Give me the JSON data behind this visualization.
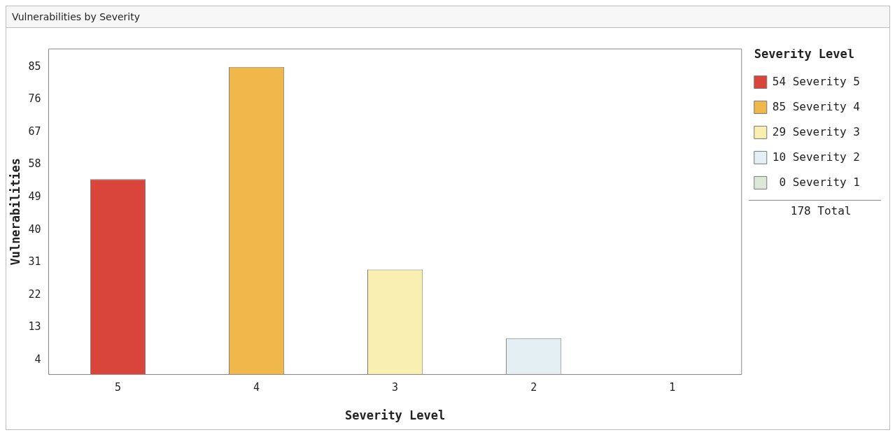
{
  "chart_data": {
    "type": "bar",
    "title": "Vulnerabilities by Severity",
    "xlabel": "Severity Level",
    "ylabel": "Vulnerabilities",
    "legend_title": "Severity Level",
    "categories": [
      "5",
      "4",
      "3",
      "2",
      "1"
    ],
    "stacked": true,
    "series": [
      {
        "name": "54 Severity 5",
        "color": "#d9443b",
        "values": [
          54,
          null,
          null,
          null,
          null
        ]
      },
      {
        "name": "85 Severity 4",
        "color": "#f0b84a",
        "values": [
          null,
          85,
          null,
          null,
          null
        ]
      },
      {
        "name": "29 Severity 3",
        "color": "#f8efb0",
        "values": [
          null,
          null,
          29,
          null,
          null
        ]
      },
      {
        "name": "10 Severity 2",
        "color": "#e3eff2",
        "values": [
          null,
          null,
          null,
          10,
          null
        ]
      },
      {
        "name": " 0 Severity 1",
        "color": "#dde9d8",
        "values": [
          null,
          null,
          null,
          null,
          0
        ]
      }
    ],
    "ylim": [
      0,
      90
    ],
    "yticks": [
      4,
      13,
      22,
      31,
      40,
      49,
      58,
      67,
      76,
      85
    ],
    "grid": false,
    "legend": "right",
    "annotations": [
      "178 Total"
    ]
  }
}
